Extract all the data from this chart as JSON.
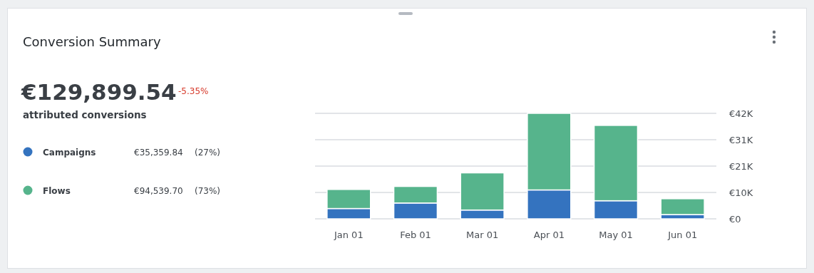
{
  "chart_data": {
    "type": "bar",
    "stacked": true,
    "title": "Conversion Summary",
    "categories": [
      "Jan 01",
      "Feb 01",
      "Mar 01",
      "Apr 01",
      "May 01",
      "Jun 01"
    ],
    "series": [
      {
        "name": "Campaigns",
        "color": "#3473bf",
        "values": [
          4100,
          6300,
          3500,
          11500,
          7200,
          1700
        ]
      },
      {
        "name": "Flows",
        "color": "#56b48c",
        "values": [
          7600,
          6600,
          14800,
          30500,
          30000,
          6300
        ]
      }
    ],
    "ylim": [
      0,
      42000
    ],
    "yticks": [
      {
        "value": 0,
        "label": "€0"
      },
      {
        "value": 10500,
        "label": "€10K"
      },
      {
        "value": 21000,
        "label": "€21K"
      },
      {
        "value": 31500,
        "label": "€31K"
      },
      {
        "value": 42000,
        "label": "€42K"
      }
    ],
    "grid": "y",
    "legend": "left",
    "annotations": [
      "€129,899.54",
      "-5.35%",
      "attributed conversions",
      "€35,359.84",
      "(27%)",
      "€94,539.70",
      "(73%)"
    ]
  }
}
